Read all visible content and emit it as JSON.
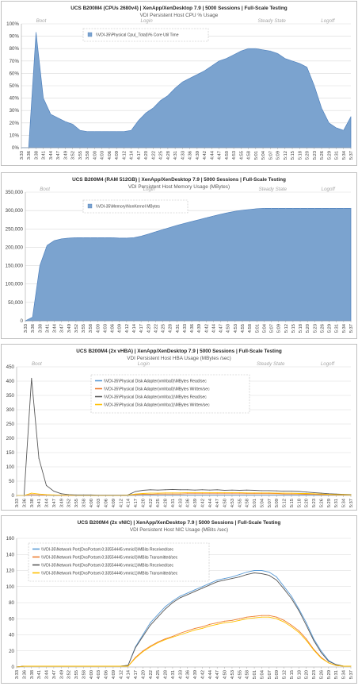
{
  "chart_data": [
    {
      "type": "area",
      "title": "UCS B200M4 (CPUs 2680v4) | XenApp/XenDesktop 7.9 | 5000 Sessions | Full-Scale Testing",
      "subtitle": "VDI Persistent Host CPU % Usage",
      "ylim": [
        0,
        100
      ],
      "yticks": [
        "0%",
        "10%",
        "20%",
        "30%",
        "40%",
        "50%",
        "60%",
        "70%",
        "80%",
        "90%",
        "100%"
      ],
      "grid": true,
      "legend_position": "top-center",
      "phases": [
        "Boot",
        "Login",
        "Steady State",
        "Logoff"
      ],
      "x": [
        "3:33",
        "3:36",
        "3:38",
        "3:41",
        "3:44",
        "3:47",
        "3:49",
        "3:52",
        "3:55",
        "3:58",
        "4:00",
        "4:03",
        "4:06",
        "4:09",
        "4:12",
        "4:14",
        "4:17",
        "4:20",
        "4:22",
        "4:25",
        "4:28",
        "4:31",
        "4:33",
        "4:36",
        "4:39",
        "4:42",
        "4:44",
        "4:47",
        "4:50",
        "4:53",
        "4:55",
        "4:58",
        "5:01",
        "5:04",
        "5:07",
        "5:09",
        "5:12",
        "5:15",
        "5:18",
        "5:20",
        "5:23",
        "5:26",
        "5:29",
        "5:31",
        "5:34",
        "5:37"
      ],
      "series": [
        {
          "name": "\\\\VDI-35\\Physical Cpu(_Total)\\% Core Util Time",
          "color": "#7ba3cf",
          "values": [
            0,
            0,
            93,
            40,
            27,
            24,
            21,
            19,
            14,
            13,
            13,
            13,
            13,
            13,
            13,
            14,
            22,
            28,
            32,
            38,
            42,
            48,
            53,
            56,
            59,
            62,
            66,
            70,
            72,
            75,
            78,
            80,
            80,
            79,
            78,
            76,
            72,
            70,
            68,
            65,
            50,
            32,
            20,
            16,
            14,
            25
          ]
        }
      ]
    },
    {
      "type": "area",
      "title": "UCS B200M4 (RAM 512GB) | XenApp/XenDesktop 7.9 | 5000 Sessions | Full-Scale Testing",
      "subtitle": "VDI Persistent Host Memory Usage (MBytes)",
      "ylim": [
        0,
        350000
      ],
      "yticks": [
        "0",
        "50,000",
        "100,000",
        "150,000",
        "200,000",
        "250,000",
        "300,000",
        "350,000"
      ],
      "grid": true,
      "legend_position": "top-center",
      "phases": [
        "Boot",
        "Login",
        "Steady State",
        "Logoff"
      ],
      "x": [
        "3:33",
        "3:36",
        "3:38",
        "3:41",
        "3:44",
        "3:47",
        "3:49",
        "3:52",
        "3:55",
        "3:58",
        "4:00",
        "4:03",
        "4:06",
        "4:09",
        "4:12",
        "4:14",
        "4:17",
        "4:20",
        "4:22",
        "4:25",
        "4:28",
        "4:31",
        "4:33",
        "4:36",
        "4:39",
        "4:42",
        "4:44",
        "4:47",
        "4:50",
        "4:53",
        "4:55",
        "4:58",
        "5:01",
        "5:04",
        "5:07",
        "5:09",
        "5:12",
        "5:15",
        "5:18",
        "5:20",
        "5:23",
        "5:26",
        "5:29",
        "5:31",
        "5:34",
        "5:37"
      ],
      "series": [
        {
          "name": "\\\\VDI-35\\Memory\\NonKernel MBytes",
          "color": "#7ba3cf",
          "values": [
            0,
            10000,
            150000,
            205000,
            218000,
            223000,
            225000,
            226000,
            226000,
            226000,
            226000,
            226000,
            226000,
            225000,
            225000,
            226000,
            230000,
            236000,
            242000,
            248000,
            254000,
            260000,
            265000,
            270000,
            275000,
            280000,
            285000,
            290000,
            294000,
            298000,
            301000,
            303000,
            305000,
            306000,
            306000,
            306000,
            306000,
            306000,
            306000,
            306000,
            306000,
            306000,
            306000,
            306000,
            306000,
            306000
          ]
        }
      ]
    },
    {
      "type": "line",
      "title": "UCS B200M4 (2x vHBA) | XenApp/XenDesktop 7.9 | 5000 Sessions | Full-Scale Testing",
      "subtitle": "VDI Persistent Host HBA Usage (MBytes /sec)",
      "ylim": [
        0,
        450
      ],
      "yticks": [
        "0",
        "50",
        "100",
        "150",
        "200",
        "250",
        "300",
        "350",
        "400",
        "450"
      ],
      "grid": true,
      "legend_position": "top-center",
      "phases": [
        "Boot",
        "Login",
        "Steady State",
        "Logoff"
      ],
      "x": [
        "3:33",
        "3:36",
        "3:38",
        "3:41",
        "3:44",
        "3:47",
        "3:49",
        "3:52",
        "3:55",
        "3:58",
        "4:00",
        "4:03",
        "4:06",
        "4:09",
        "4:12",
        "4:14",
        "4:17",
        "4:20",
        "4:22",
        "4:25",
        "4:28",
        "4:31",
        "4:33",
        "4:36",
        "4:39",
        "4:42",
        "4:44",
        "4:47",
        "4:50",
        "4:53",
        "4:55",
        "4:58",
        "5:01",
        "5:04",
        "5:07",
        "5:09",
        "5:12",
        "5:15",
        "5:18",
        "5:20",
        "5:23",
        "5:26",
        "5:29",
        "5:31",
        "5:34",
        "5:37"
      ],
      "series": [
        {
          "name": "\\\\VDI-35\\Physical Disk Adapter(vmhba0)\\MBytes Read/sec",
          "color": "#5b9bd5",
          "values": [
            0,
            0,
            2,
            1,
            1,
            0,
            0,
            0,
            0,
            0,
            0,
            0,
            0,
            0,
            0,
            0,
            1,
            1,
            1,
            1,
            1,
            1,
            1,
            1,
            1,
            1,
            1,
            1,
            1,
            1,
            1,
            1,
            1,
            1,
            1,
            1,
            1,
            1,
            1,
            1,
            1,
            1,
            1,
            1,
            1,
            1
          ]
        },
        {
          "name": "\\\\VDI-35\\Physical Disk Adapter(vmhba0)\\MBytes Written/sec",
          "color": "#ed7d31",
          "values": [
            0,
            0,
            3,
            2,
            1,
            1,
            0,
            0,
            0,
            0,
            0,
            0,
            0,
            0,
            0,
            1,
            3,
            4,
            4,
            5,
            5,
            5,
            5,
            6,
            6,
            6,
            6,
            6,
            6,
            6,
            6,
            6,
            6,
            6,
            6,
            6,
            5,
            5,
            5,
            4,
            4,
            3,
            3,
            2,
            2,
            2
          ]
        },
        {
          "name": "\\\\VDI-35\\Physical Disk Adapter(vmhba1)\\MBytes Read/sec",
          "color": "#595959",
          "values": [
            0,
            0,
            410,
            130,
            35,
            15,
            6,
            3,
            2,
            2,
            2,
            1,
            1,
            1,
            1,
            2,
            14,
            18,
            20,
            19,
            20,
            21,
            20,
            20,
            19,
            20,
            19,
            20,
            18,
            19,
            18,
            19,
            18,
            17,
            17,
            16,
            15,
            15,
            14,
            12,
            10,
            8,
            6,
            5,
            4,
            3
          ]
        },
        {
          "name": "\\\\VDI-35\\Physical Disk Adapter(vmhba1)\\MBytes Written/sec",
          "color": "#ffc000",
          "values": [
            0,
            0,
            8,
            5,
            3,
            2,
            1,
            1,
            0,
            0,
            0,
            0,
            0,
            0,
            0,
            1,
            5,
            7,
            8,
            8,
            9,
            9,
            9,
            10,
            10,
            10,
            10,
            10,
            10,
            10,
            10,
            9,
            9,
            9,
            9,
            8,
            8,
            8,
            7,
            7,
            6,
            5,
            4,
            3,
            3,
            2
          ]
        }
      ]
    },
    {
      "type": "line",
      "title": "UCS B200M4 (2x vNIC) | XenApp/XenDesktop 7.9 | 5000 Sessions | Full-Scale Testing",
      "subtitle": "VDI Persistent Host NIC Usage (MBits /sec)",
      "ylim": [
        0,
        160
      ],
      "yticks": [
        "0",
        "20",
        "40",
        "60",
        "80",
        "100",
        "120",
        "140",
        "160"
      ],
      "grid": true,
      "legend_position": "top-left",
      "phases": [],
      "x": [
        "3:33",
        "3:36",
        "3:38",
        "3:41",
        "3:44",
        "3:47",
        "3:49",
        "3:52",
        "3:55",
        "3:58",
        "4:00",
        "4:03",
        "4:06",
        "4:09",
        "4:12",
        "4:14",
        "4:17",
        "4:20",
        "4:22",
        "4:25",
        "4:28",
        "4:31",
        "4:33",
        "4:36",
        "4:39",
        "4:42",
        "4:44",
        "4:47",
        "4:50",
        "4:53",
        "4:55",
        "4:58",
        "5:01",
        "5:04",
        "5:07",
        "5:09",
        "5:12",
        "5:15",
        "5:18",
        "5:20",
        "5:23",
        "5:26",
        "5:29",
        "5:31",
        "5:34",
        "5:37"
      ],
      "series": [
        {
          "name": "\\\\VDI-35\\Network Port(DvsPortset-0:33554445:vmnic0)\\MBits Received/sec",
          "color": "#5b9bd5",
          "values": [
            0,
            1,
            1,
            1,
            1,
            1,
            1,
            1,
            1,
            1,
            1,
            1,
            1,
            1,
            1,
            2,
            25,
            40,
            55,
            65,
            75,
            82,
            88,
            92,
            96,
            100,
            104,
            108,
            110,
            112,
            115,
            118,
            120,
            120,
            118,
            112,
            100,
            88,
            72,
            55,
            35,
            20,
            8,
            3,
            1,
            1
          ]
        },
        {
          "name": "\\\\VDI-35\\Network Port(DvsPortset-0:33554445:vmnic0)\\MBits Transmitted/sec",
          "color": "#ed7d31",
          "values": [
            0,
            1,
            1,
            1,
            1,
            1,
            1,
            1,
            1,
            1,
            1,
            1,
            1,
            1,
            1,
            1,
            12,
            20,
            26,
            31,
            35,
            38,
            42,
            45,
            48,
            50,
            53,
            55,
            57,
            58,
            60,
            62,
            63,
            64,
            64,
            62,
            58,
            52,
            45,
            35,
            22,
            12,
            5,
            2,
            1,
            1
          ]
        },
        {
          "name": "\\\\VDI-35\\Network Port(DvsPortset-0:33554446:vmnic1)\\MBits Received/sec",
          "color": "#595959",
          "values": [
            0,
            1,
            1,
            1,
            1,
            1,
            1,
            1,
            1,
            1,
            1,
            1,
            1,
            1,
            1,
            2,
            24,
            38,
            52,
            62,
            72,
            80,
            86,
            90,
            94,
            98,
            102,
            106,
            108,
            110,
            112,
            115,
            117,
            116,
            114,
            108,
            97,
            85,
            70,
            52,
            33,
            18,
            7,
            3,
            1,
            1
          ]
        },
        {
          "name": "\\\\VDI-35\\Network Port(DvsPortset-0:33554446:vmnic1)\\MBits Transmitted/sec",
          "color": "#ffc000",
          "values": [
            0,
            1,
            1,
            1,
            1,
            1,
            1,
            1,
            1,
            1,
            1,
            1,
            1,
            1,
            1,
            1,
            11,
            19,
            25,
            30,
            34,
            37,
            40,
            43,
            46,
            48,
            51,
            53,
            55,
            56,
            58,
            60,
            61,
            62,
            62,
            60,
            56,
            50,
            43,
            33,
            21,
            11,
            5,
            2,
            1,
            1
          ]
        }
      ]
    }
  ]
}
